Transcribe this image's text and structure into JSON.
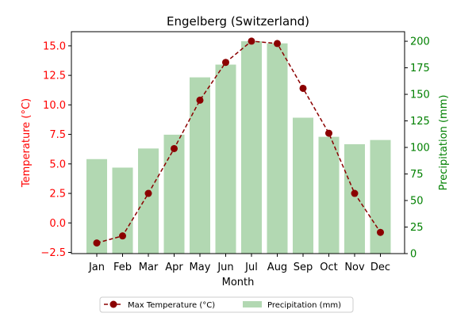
{
  "chart_data": {
    "type": "bar+line",
    "title": "Engelberg (Switzerland)",
    "xlabel": "Month",
    "ylabel_left": "Temperature (°C)",
    "ylabel_right": "Precipitation (mm)",
    "categories": [
      "Jan",
      "Feb",
      "Mar",
      "Apr",
      "May",
      "Jun",
      "Jul",
      "Aug",
      "Sep",
      "Oct",
      "Nov",
      "Dec"
    ],
    "series": [
      {
        "name": "Max Temperature (°C)",
        "type": "line",
        "axis": "left",
        "color": "#8b0000",
        "values": [
          -1.7,
          -1.1,
          2.5,
          6.3,
          10.4,
          13.6,
          15.4,
          15.2,
          11.4,
          7.6,
          2.5,
          -0.8
        ]
      },
      {
        "name": "Precipitation (mm)",
        "type": "bar",
        "axis": "right",
        "color": "#b2d8b2",
        "values": [
          89,
          81,
          99,
          112,
          166,
          178,
          200,
          198,
          128,
          110,
          103,
          107
        ]
      }
    ],
    "ylim_left": [
      -2.6,
      16.2
    ],
    "yticks_left": [
      "−2.5",
      "0.0",
      "2.5",
      "5.0",
      "7.5",
      "10.0",
      "12.5",
      "15.0"
    ],
    "ylim_right": [
      0,
      209
    ],
    "yticks_right": [
      "0",
      "25",
      "50",
      "75",
      "100",
      "125",
      "150",
      "175",
      "200"
    ],
    "left_axis_color": "#ff0000",
    "right_axis_color": "#008000",
    "grid": false,
    "legend_position": "bottom-center"
  }
}
